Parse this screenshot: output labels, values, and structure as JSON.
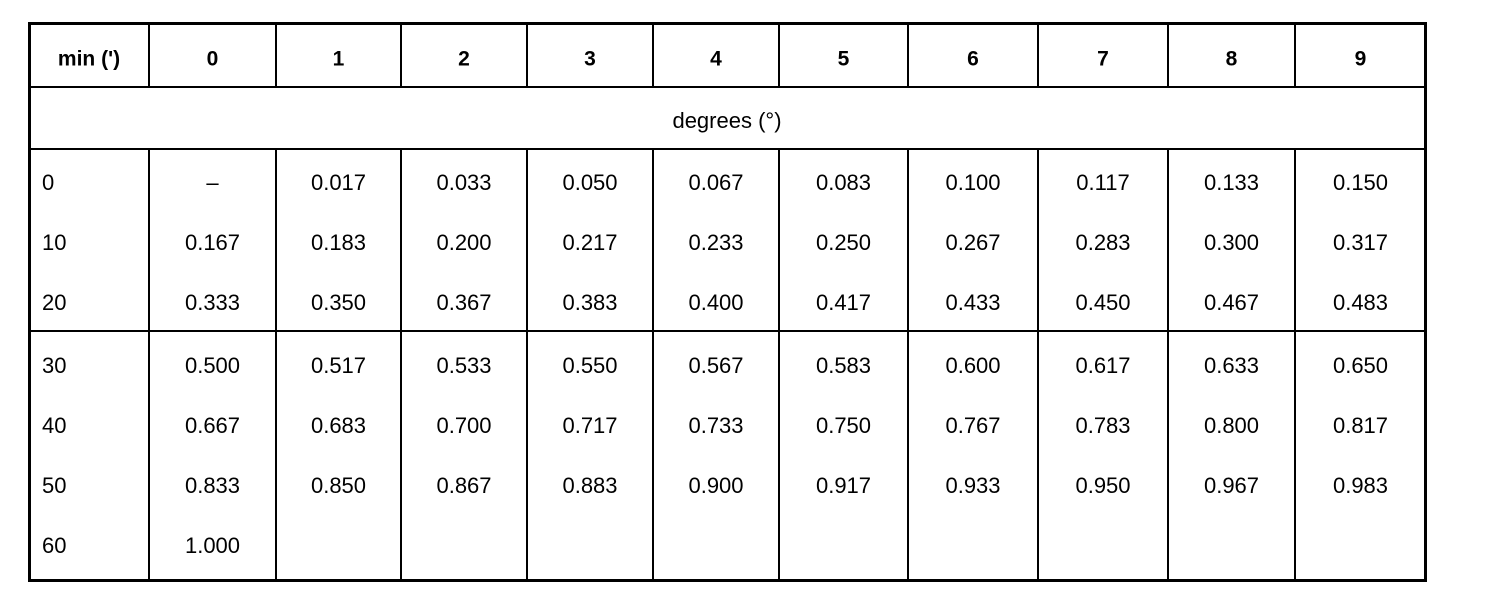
{
  "header": [
    "min (')",
    "0",
    "1",
    "2",
    "3",
    "4",
    "5",
    "6",
    "7",
    "8",
    "9"
  ],
  "subheader": "degrees (°)",
  "groups": [
    [
      [
        "0",
        "–",
        "0.017",
        "0.033",
        "0.050",
        "0.067",
        "0.083",
        "0.100",
        "0.117",
        "0.133",
        "0.150"
      ],
      [
        "10",
        "0.167",
        "0.183",
        "0.200",
        "0.217",
        "0.233",
        "0.250",
        "0.267",
        "0.283",
        "0.300",
        "0.317"
      ],
      [
        "20",
        "0.333",
        "0.350",
        "0.367",
        "0.383",
        "0.400",
        "0.417",
        "0.433",
        "0.450",
        "0.467",
        "0.483"
      ]
    ],
    [
      [
        "30",
        "0.500",
        "0.517",
        "0.533",
        "0.550",
        "0.567",
        "0.583",
        "0.600",
        "0.617",
        "0.633",
        "0.650"
      ],
      [
        "40",
        "0.667",
        "0.683",
        "0.700",
        "0.717",
        "0.733",
        "0.750",
        "0.767",
        "0.783",
        "0.800",
        "0.817"
      ],
      [
        "50",
        "0.833",
        "0.850",
        "0.867",
        "0.883",
        "0.900",
        "0.917",
        "0.933",
        "0.950",
        "0.967",
        "0.983"
      ],
      [
        "60",
        "1.000"
      ]
    ]
  ]
}
